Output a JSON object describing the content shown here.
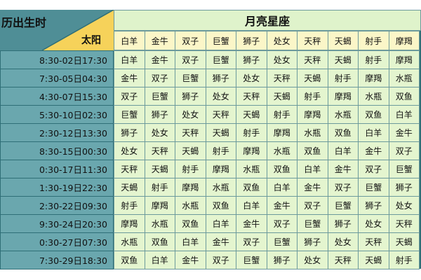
{
  "header": {
    "corner_top": "历出生时",
    "corner_sun": "太阳",
    "title": "月亮星座"
  },
  "columns": [
    "白羊",
    "金牛",
    "双子",
    "巨蟹",
    "狮子",
    "处女",
    "天秤",
    "天蝎",
    "射手",
    "摩羯"
  ],
  "rows": [
    {
      "label": "8:30-02日17:30",
      "cells": [
        "白羊",
        "金牛",
        "双子",
        "巨蟹",
        "狮子",
        "处女",
        "天秤",
        "天蝎",
        "射手",
        "摩羯"
      ]
    },
    {
      "label": "7:30-05日04:30",
      "cells": [
        "金牛",
        "双子",
        "巨蟹",
        "狮子",
        "处女",
        "天秤",
        "天蝎",
        "射手",
        "摩羯",
        "水瓶"
      ]
    },
    {
      "label": "4:30-07日15:30",
      "cells": [
        "双子",
        "巨蟹",
        "狮子",
        "处女",
        "天秤",
        "天蝎",
        "射手",
        "摩羯",
        "水瓶",
        "双鱼"
      ]
    },
    {
      "label": "5:30-10日02:30",
      "cells": [
        "巨蟹",
        "狮子",
        "处女",
        "天秤",
        "天蝎",
        "射手",
        "摩羯",
        "水瓶",
        "双鱼",
        "白羊"
      ]
    },
    {
      "label": "2:30-12日13:30",
      "cells": [
        "狮子",
        "处女",
        "天秤",
        "天蝎",
        "射手",
        "摩羯",
        "水瓶",
        "双鱼",
        "白羊",
        "金牛"
      ]
    },
    {
      "label": "8:30-15日00:30",
      "cells": [
        "处女",
        "天秤",
        "天蝎",
        "射手",
        "摩羯",
        "水瓶",
        "双鱼",
        "白羊",
        "金牛",
        "双子"
      ]
    },
    {
      "label": "0:30-17日11:30",
      "cells": [
        "天秤",
        "天蝎",
        "射手",
        "摩羯",
        "水瓶",
        "双鱼",
        "白羊",
        "金牛",
        "双子",
        "巨蟹"
      ]
    },
    {
      "label": "1:30-19日22:30",
      "cells": [
        "天蝎",
        "射手",
        "摩羯",
        "水瓶",
        "双鱼",
        "白羊",
        "金牛",
        "双子",
        "巨蟹",
        "狮子"
      ]
    },
    {
      "label": "2:30-22日09:30",
      "cells": [
        "射手",
        "摩羯",
        "水瓶",
        "双鱼",
        "白羊",
        "金牛",
        "双子",
        "巨蟹",
        "狮子",
        "处女"
      ]
    },
    {
      "label": "9:30-24日20:30",
      "cells": [
        "摩羯",
        "水瓶",
        "双鱼",
        "白羊",
        "金牛",
        "双子",
        "巨蟹",
        "狮子",
        "处女",
        "天秤"
      ]
    },
    {
      "label": "0:30-27日07:30",
      "cells": [
        "水瓶",
        "双鱼",
        "白羊",
        "金牛",
        "双子",
        "巨蟹",
        "狮子",
        "处女",
        "天秤",
        "天蝎"
      ]
    },
    {
      "label": "7:30-29日18:30",
      "cells": [
        "双鱼",
        "白羊",
        "金牛",
        "双子",
        "巨蟹",
        "狮子",
        "处女",
        "天秤",
        "天蝎",
        "射手"
      ]
    }
  ]
}
